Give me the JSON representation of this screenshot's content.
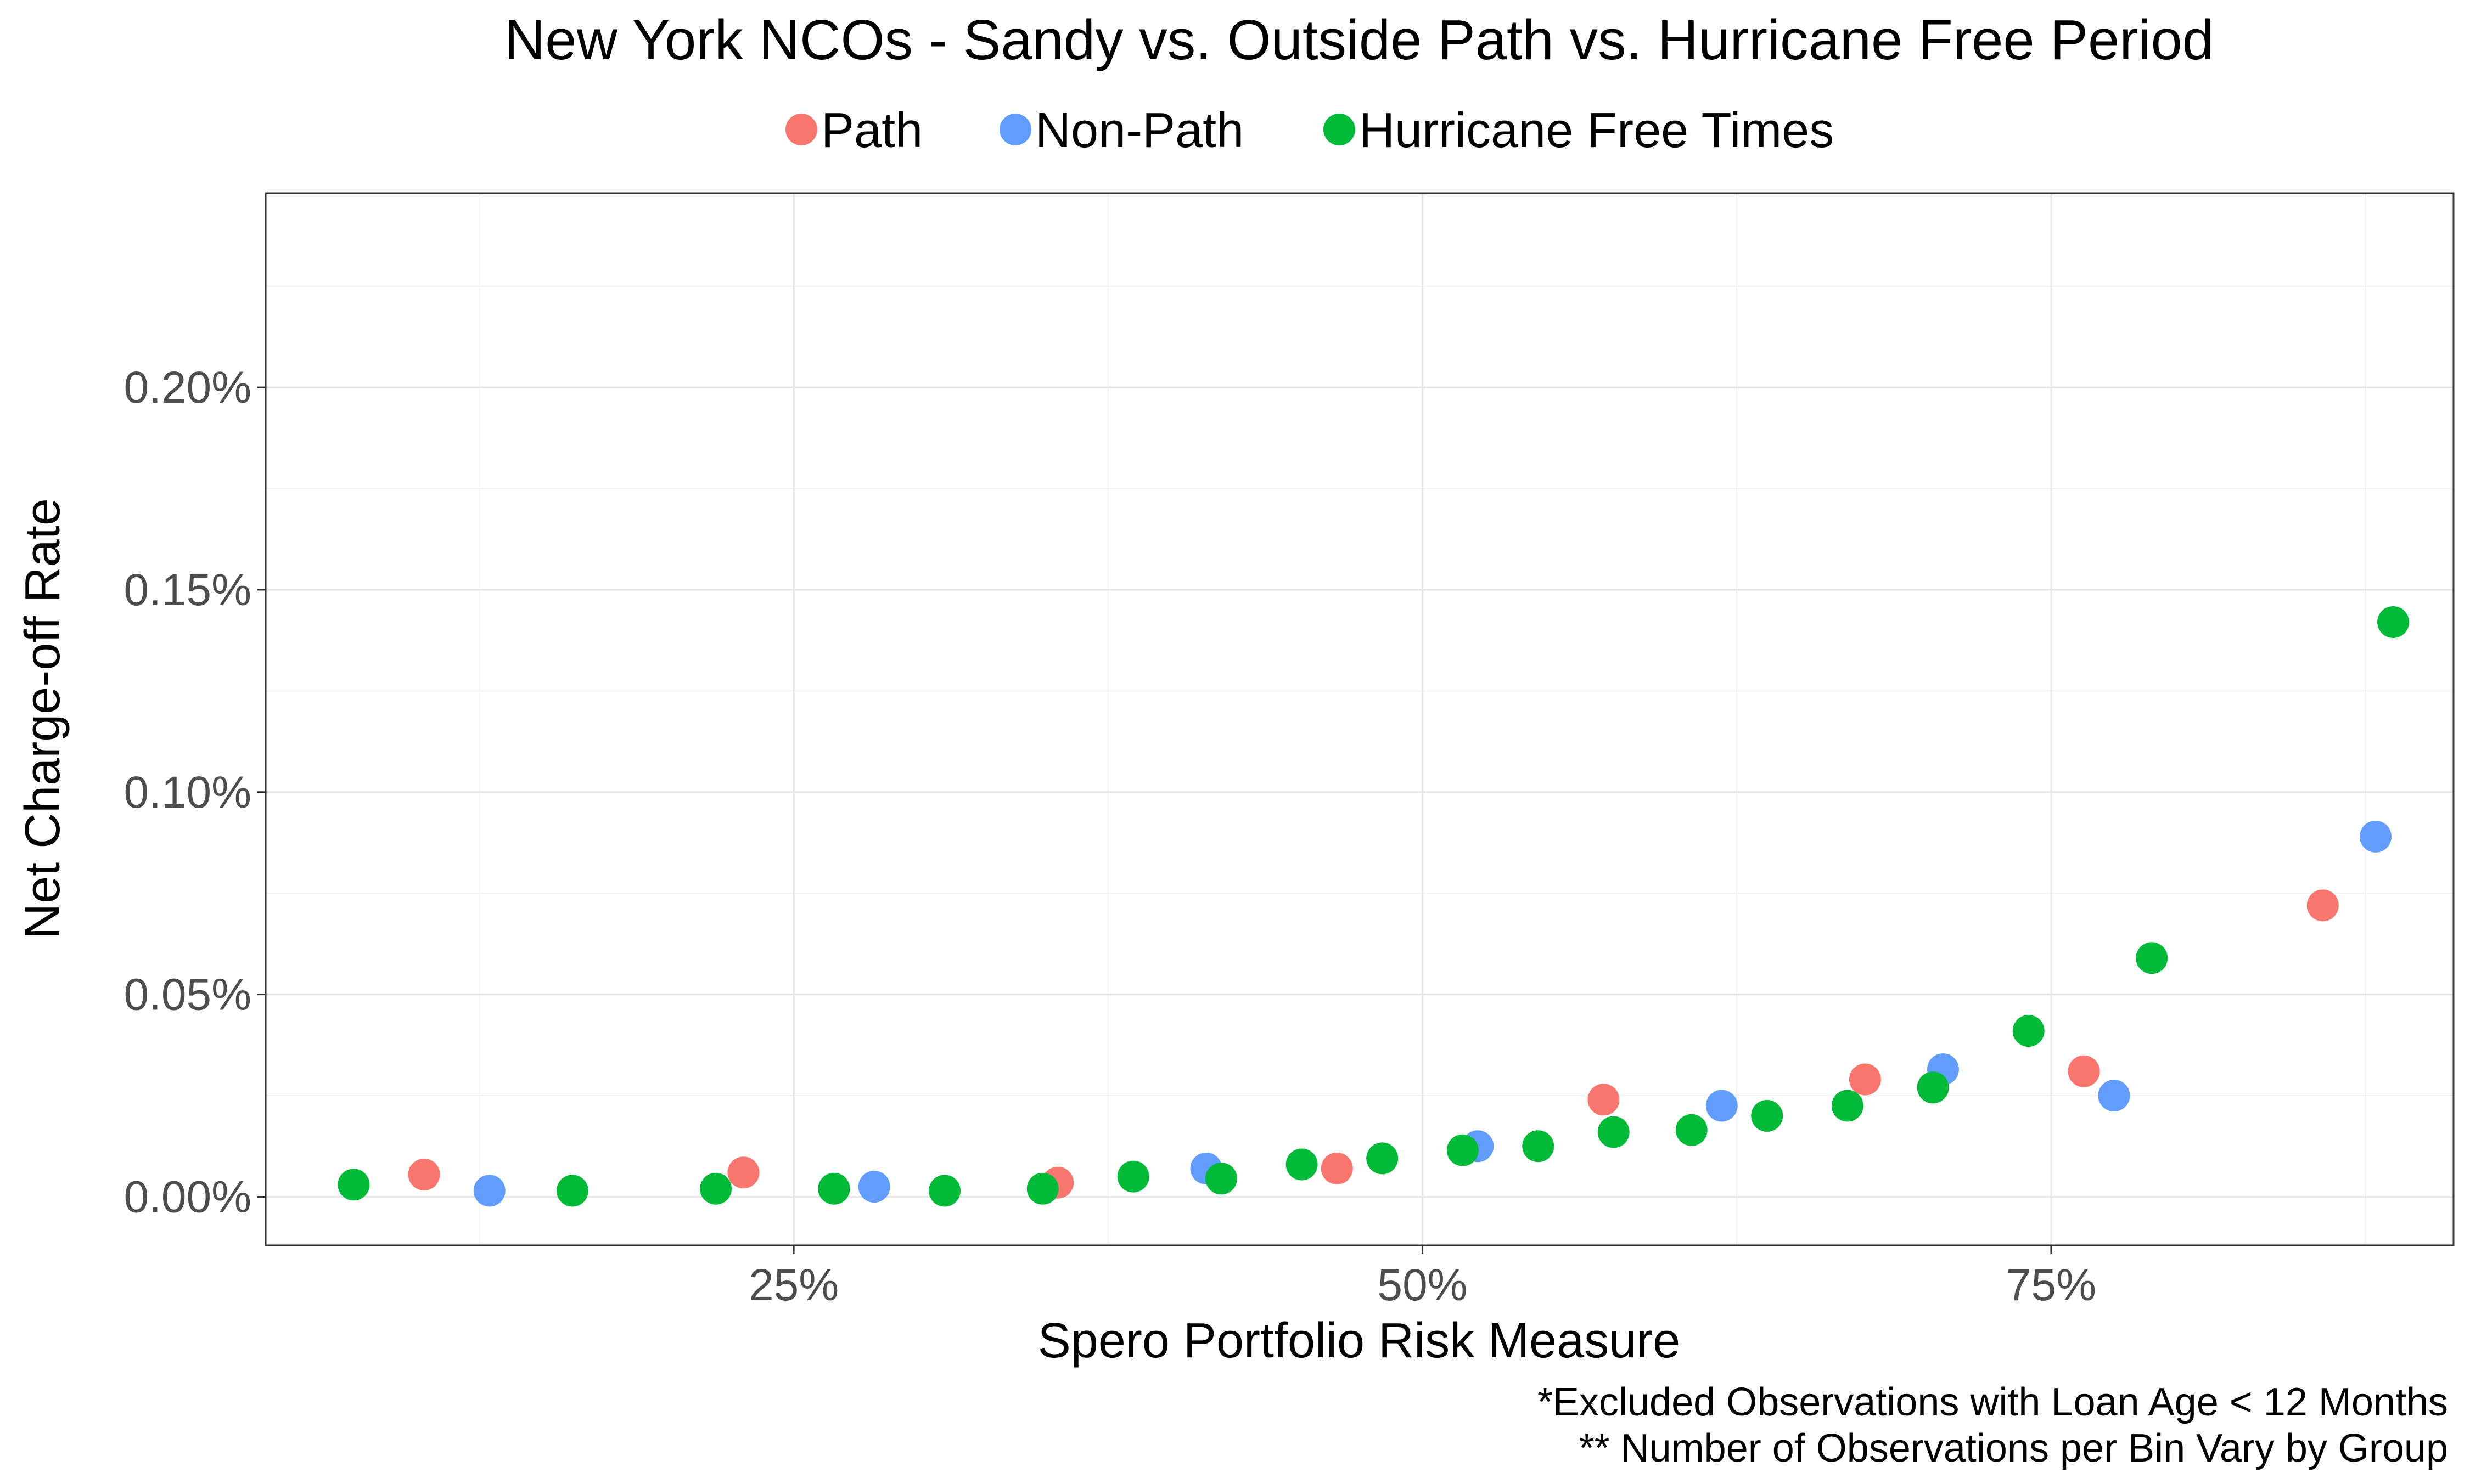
{
  "chart_data": {
    "type": "scatter",
    "title": "New York NCOs - Sandy vs. Outside Path vs. Hurricane Free Period",
    "xlabel": "Spero Portfolio Risk Measure",
    "ylabel": "Net Charge-off Rate",
    "xlim": [
      4,
      91
    ],
    "ylim": [
      -0.00012,
      0.00248
    ],
    "x_ticks": [
      {
        "value": 25,
        "label": "25%"
      },
      {
        "value": 50,
        "label": "50%"
      },
      {
        "value": 75,
        "label": "75%"
      }
    ],
    "y_ticks": [
      {
        "value": 0,
        "label": "0.00%"
      },
      {
        "value": 0.0005,
        "label": "0.05%"
      },
      {
        "value": 0.001,
        "label": "0.10%"
      },
      {
        "value": 0.0015,
        "label": "0.15%"
      },
      {
        "value": 0.002,
        "label": "0.20%"
      }
    ],
    "grid": true,
    "legend_position": "top",
    "series": [
      {
        "name": "Path",
        "color": "#F8766D",
        "points": [
          [
            10.3,
            5.5e-05
          ],
          [
            23.0,
            6e-05
          ],
          [
            35.5,
            3.5e-05
          ],
          [
            46.6,
            7e-05
          ],
          [
            57.2,
            0.00024
          ],
          [
            67.6,
            0.00029
          ],
          [
            76.3,
            0.00031
          ],
          [
            85.8,
            0.00072
          ]
        ]
      },
      {
        "name": "Non-Path",
        "color": "#619CFF",
        "points": [
          [
            12.9,
            1.5e-05
          ],
          [
            28.2,
            2.5e-05
          ],
          [
            41.4,
            7e-05
          ],
          [
            52.2,
            0.000125
          ],
          [
            61.9,
            0.000225
          ],
          [
            70.7,
            0.000315
          ],
          [
            77.5,
            0.00025
          ],
          [
            87.9,
            0.00089
          ]
        ]
      },
      {
        "name": "Hurricane Free Times",
        "color": "#00BA38",
        "points": [
          [
            7.5,
            3e-05
          ],
          [
            16.2,
            1.5e-05
          ],
          [
            21.9,
            2e-05
          ],
          [
            26.6,
            2e-05
          ],
          [
            31.0,
            1.5e-05
          ],
          [
            34.9,
            2e-05
          ],
          [
            38.5,
            5e-05
          ],
          [
            42.0,
            4.5e-05
          ],
          [
            45.2,
            8e-05
          ],
          [
            48.4,
            9.5e-05
          ],
          [
            51.6,
            0.000115
          ],
          [
            54.6,
            0.000125
          ],
          [
            57.6,
            0.00016
          ],
          [
            60.7,
            0.000165
          ],
          [
            63.7,
            0.0002
          ],
          [
            66.9,
            0.000225
          ],
          [
            70.3,
            0.00027
          ],
          [
            74.1,
            0.00041
          ],
          [
            79.0,
            0.00059
          ],
          [
            88.6,
            0.00142
          ]
        ]
      }
    ]
  },
  "notes": [
    "*Excluded Observations with Loan Age < 12 Months",
    "** Number of Observations per Bin Vary by Group"
  ]
}
